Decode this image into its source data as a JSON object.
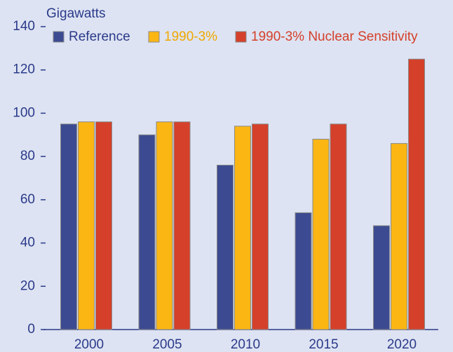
{
  "chart_data": {
    "type": "bar",
    "y_axis_label": "Gigawatts",
    "categories": [
      "2000",
      "2005",
      "2010",
      "2015",
      "2020"
    ],
    "series": [
      {
        "name": "Reference",
        "color": "#3c4b91",
        "text_color": "#2b3a8a",
        "values": [
          95,
          90,
          76,
          54,
          48
        ]
      },
      {
        "name": "1990-3%",
        "color": "#fbb614",
        "text_color": "#f0a800",
        "values": [
          96,
          96,
          94,
          88,
          86
        ]
      },
      {
        "name": "1990-3% Nuclear Sensitivity",
        "color": "#d5402a",
        "text_color": "#d5402a",
        "values": [
          96,
          96,
          95,
          95,
          125
        ]
      }
    ],
    "ylim": [
      0,
      140
    ],
    "yticks": [
      0,
      20,
      40,
      60,
      80,
      100,
      120,
      140
    ],
    "grid": false
  }
}
